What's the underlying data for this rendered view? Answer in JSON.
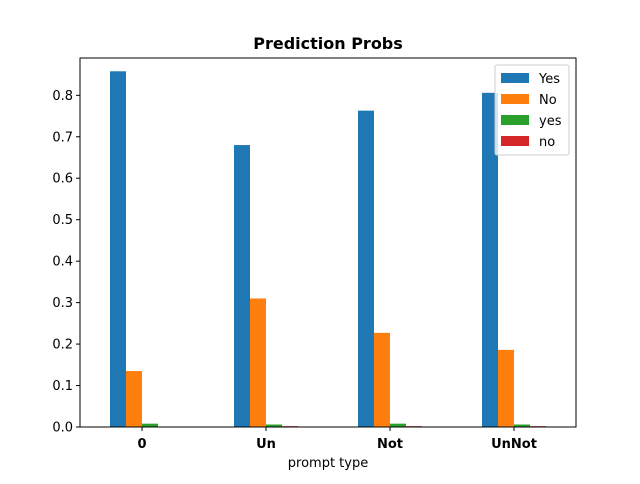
{
  "chart_data": {
    "type": "bar",
    "title": "Prediction Probs",
    "xlabel": "prompt type",
    "ylabel": "",
    "categories": [
      "0",
      "Un",
      "Not",
      "UnNot"
    ],
    "ylim": [
      0,
      0.89
    ],
    "yticks": [
      "0.0",
      "0.1",
      "0.2",
      "0.3",
      "0.4",
      "0.5",
      "0.6",
      "0.7",
      "0.8"
    ],
    "grid": false,
    "legend_position": "top-right",
    "series": [
      {
        "name": "Yes",
        "color": "#1f77b4",
        "values": [
          0.858,
          0.68,
          0.763,
          0.806
        ]
      },
      {
        "name": "No",
        "color": "#ff7f0e",
        "values": [
          0.135,
          0.31,
          0.227,
          0.186
        ]
      },
      {
        "name": "yes",
        "color": "#2ca02c",
        "values": [
          0.008,
          0.006,
          0.008,
          0.006
        ]
      },
      {
        "name": "no",
        "color": "#d62728",
        "values": [
          0.001,
          0.002,
          0.002,
          0.002
        ]
      }
    ]
  }
}
